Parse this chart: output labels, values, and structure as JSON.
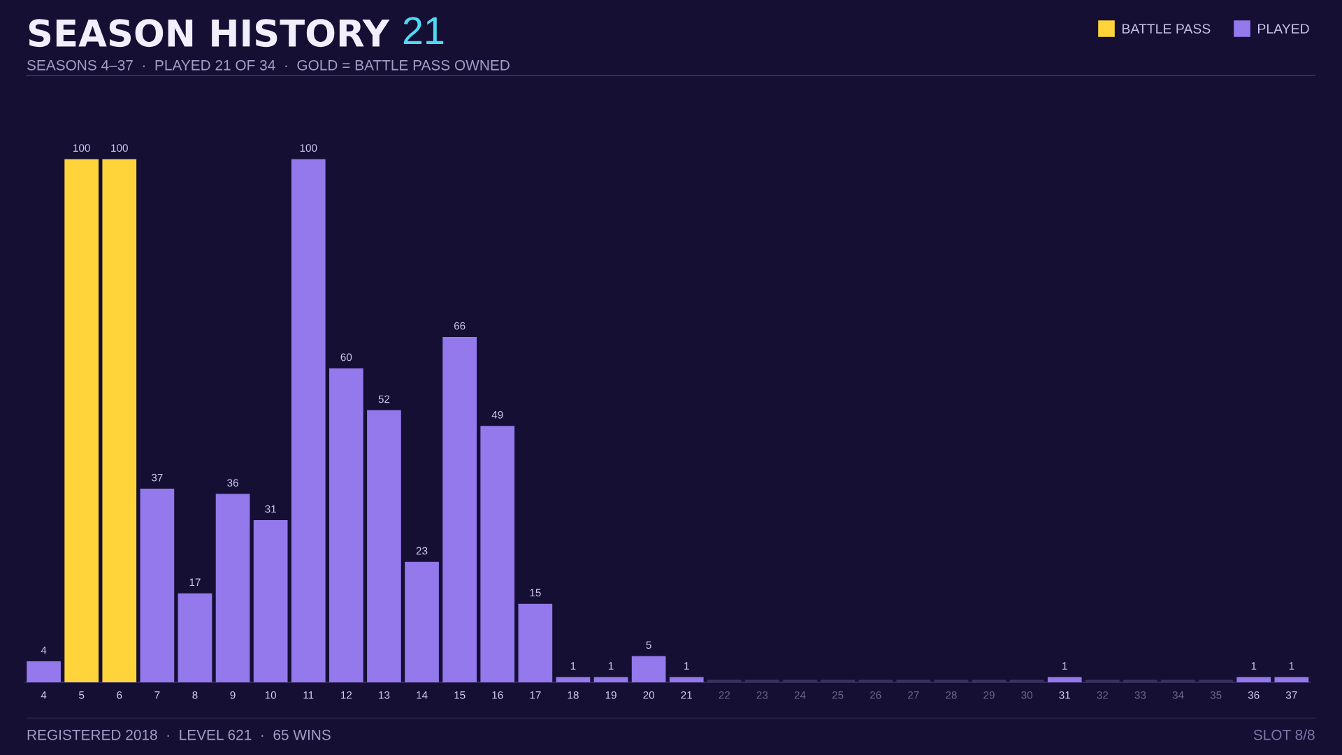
{
  "chart_data": {
    "type": "bar",
    "title": "SEASON HISTORY",
    "subtitle": "SEASONS 4–37  ·  PLAYED 21 OF 34  ·  GOLD = BATTLE PASS OWNED",
    "annotations": [
      "21",
      "REGISTERED 2018  ·  LEVEL 621  ·  65 WINS",
      "SLOT 8/8"
    ],
    "categories": [
      "4",
      "5",
      "6",
      "7",
      "8",
      "9",
      "10",
      "11",
      "12",
      "13",
      "14",
      "15",
      "16",
      "17",
      "18",
      "19",
      "20",
      "21",
      "22",
      "23",
      "24",
      "25",
      "26",
      "27",
      "28",
      "29",
      "30",
      "31",
      "32",
      "33",
      "34",
      "35",
      "36",
      "37"
    ],
    "stacked": true,
    "series": [
      {
        "name": "BATTLE PASS",
        "color": "#ffd43b",
        "values": [
          null,
          100,
          100,
          null,
          null,
          null,
          null,
          null,
          null,
          null,
          null,
          null,
          null,
          null,
          null,
          null,
          null,
          null,
          null,
          null,
          null,
          null,
          null,
          null,
          null,
          null,
          null,
          null,
          null,
          null,
          null,
          null,
          null,
          null
        ],
        "value_labels": [
          null,
          "100",
          "100",
          null,
          null,
          null,
          null,
          null,
          null,
          null,
          null,
          null,
          null,
          null,
          null,
          null,
          null,
          null,
          null,
          null,
          null,
          null,
          null,
          null,
          null,
          null,
          null,
          null,
          null,
          null,
          null,
          null,
          null,
          null
        ]
      },
      {
        "name": "PLAYED",
        "color": "#9479ec",
        "values": [
          4,
          null,
          null,
          37,
          17,
          36,
          31,
          100,
          60,
          52,
          23,
          66,
          49,
          15,
          1,
          1,
          5,
          1,
          null,
          null,
          null,
          null,
          null,
          null,
          null,
          null,
          null,
          1,
          null,
          null,
          null,
          null,
          1,
          1
        ],
        "value_labels": [
          "4",
          null,
          null,
          "37",
          "17",
          "36",
          "31",
          "100",
          "60",
          "52",
          "23",
          "66",
          "49",
          "15",
          "1",
          "1",
          "5",
          "1",
          null,
          null,
          null,
          null,
          null,
          null,
          null,
          null,
          null,
          "1",
          null,
          null,
          null,
          null,
          "1",
          "1"
        ]
      },
      {
        "color": "#3b335c",
        "values": [
          null,
          null,
          null,
          null,
          null,
          null,
          null,
          null,
          null,
          null,
          null,
          null,
          null,
          null,
          null,
          null,
          null,
          null,
          0,
          0,
          0,
          0,
          0,
          0,
          0,
          0,
          0,
          null,
          0,
          0,
          0,
          0,
          null,
          null
        ]
      }
    ],
    "ylim": [
      0,
      100
    ],
    "tick_labels": "x",
    "legend": "top right",
    "grid": false
  }
}
